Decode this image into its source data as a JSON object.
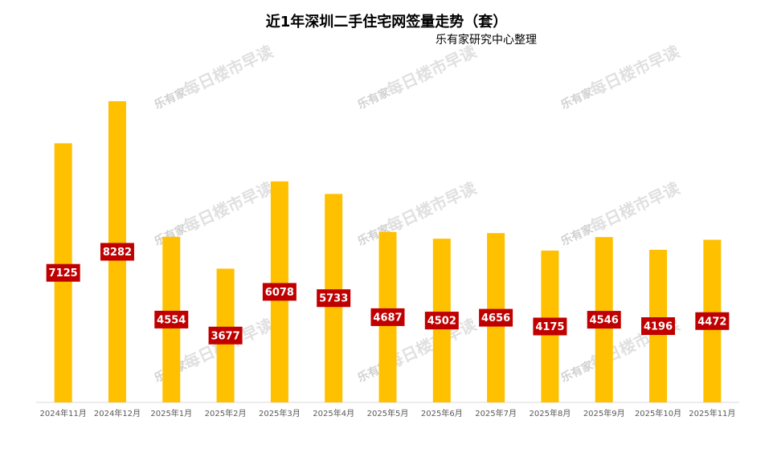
{
  "chart_data": {
    "type": "bar",
    "title": "近1年深圳二手住宅网签量走势（套）",
    "subtitle": "乐有家研究中心整理",
    "watermark_logo": "乐有家",
    "watermark": "每日楼市早读",
    "categories": [
      "2024年11月",
      "2024年12月",
      "2025年1月",
      "2025年2月",
      "2025年3月",
      "2025年4月",
      "2025年5月",
      "2025年6月",
      "2025年7月",
      "2025年8月",
      "2025年9月",
      "2025年10月",
      "2025年11月"
    ],
    "values": [
      7125,
      8282,
      4554,
      3677,
      6078,
      5733,
      4687,
      4502,
      4656,
      4175,
      4546,
      4196,
      4472
    ],
    "color": "#ffc000",
    "label_color": "#c00000",
    "ylim": [
      0,
      9000
    ]
  }
}
